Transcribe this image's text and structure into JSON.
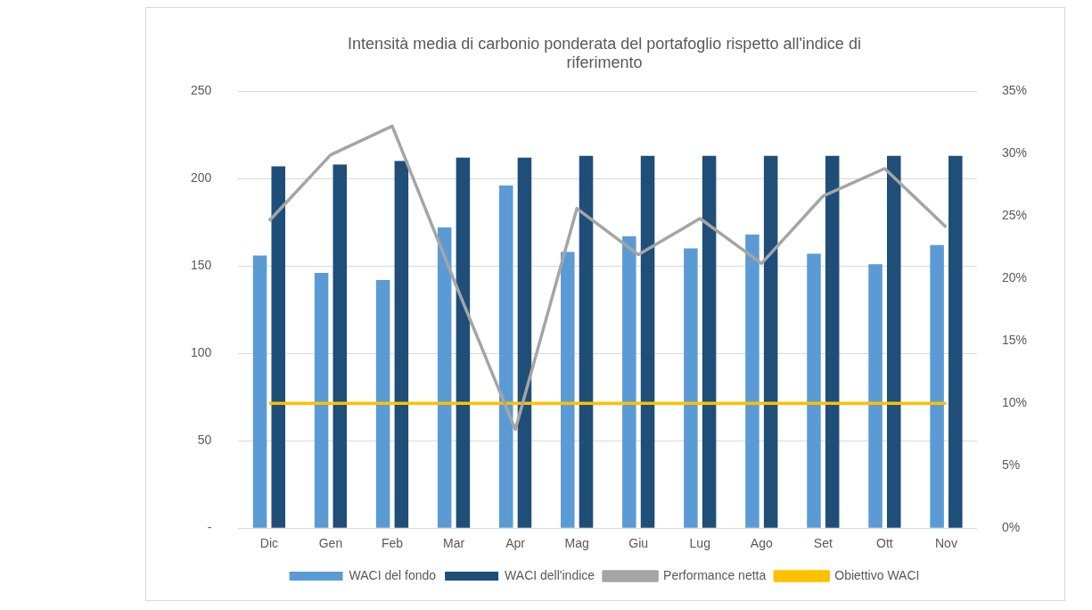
{
  "chart_data": {
    "type": "bar",
    "title": "Intensità media di carbonio ponderata del portafoglio rispetto all'indice di riferimento",
    "categories": [
      "Dic",
      "Gen",
      "Feb",
      "Mar",
      "Apr",
      "Mag",
      "Giu",
      "Lug",
      "Ago",
      "Set",
      "Ott",
      "Nov"
    ],
    "series": [
      {
        "name": "WACI del fondo",
        "color": "#5b9bd5",
        "values": [
          156,
          146,
          142,
          172,
          196,
          158,
          167,
          160,
          168,
          157,
          151,
          162
        ]
      },
      {
        "name": "WACI dell'indice",
        "color": "#1f4e79",
        "values": [
          207,
          208,
          210,
          212,
          212,
          213,
          213,
          213,
          213,
          213,
          213,
          213
        ]
      },
      {
        "name": "Performance netta",
        "type": "line",
        "axis": "y2",
        "color": "#a5a5a5",
        "values": [
          24.6,
          29.9,
          32.2,
          19.9,
          7.9,
          25.6,
          21.9,
          24.8,
          21.2,
          26.6,
          28.8,
          24.1
        ]
      },
      {
        "name": "Obiettivo WACI",
        "type": "line",
        "axis": "y2",
        "color": "#ffc000",
        "values": [
          10,
          10,
          10,
          10,
          10,
          10,
          10,
          10,
          10,
          10,
          10,
          10
        ]
      }
    ],
    "ylim": [
      0,
      250
    ],
    "yticks": [
      {
        "value": 0,
        "label": "-"
      },
      50,
      100,
      150,
      200,
      250
    ],
    "y2lim": [
      0,
      35
    ],
    "y2ticks": [
      {
        "value": 0,
        "label": "0%"
      },
      {
        "value": 5,
        "label": "5%"
      },
      {
        "value": 10,
        "label": "10%"
      },
      {
        "value": 15,
        "label": "15%"
      },
      {
        "value": 20,
        "label": "20%"
      },
      {
        "value": 25,
        "label": "25%"
      },
      {
        "value": 30,
        "label": "30%"
      },
      {
        "value": 35,
        "label": "35%"
      }
    ],
    "grid": "y",
    "legend": "bottom",
    "marker": "none"
  }
}
